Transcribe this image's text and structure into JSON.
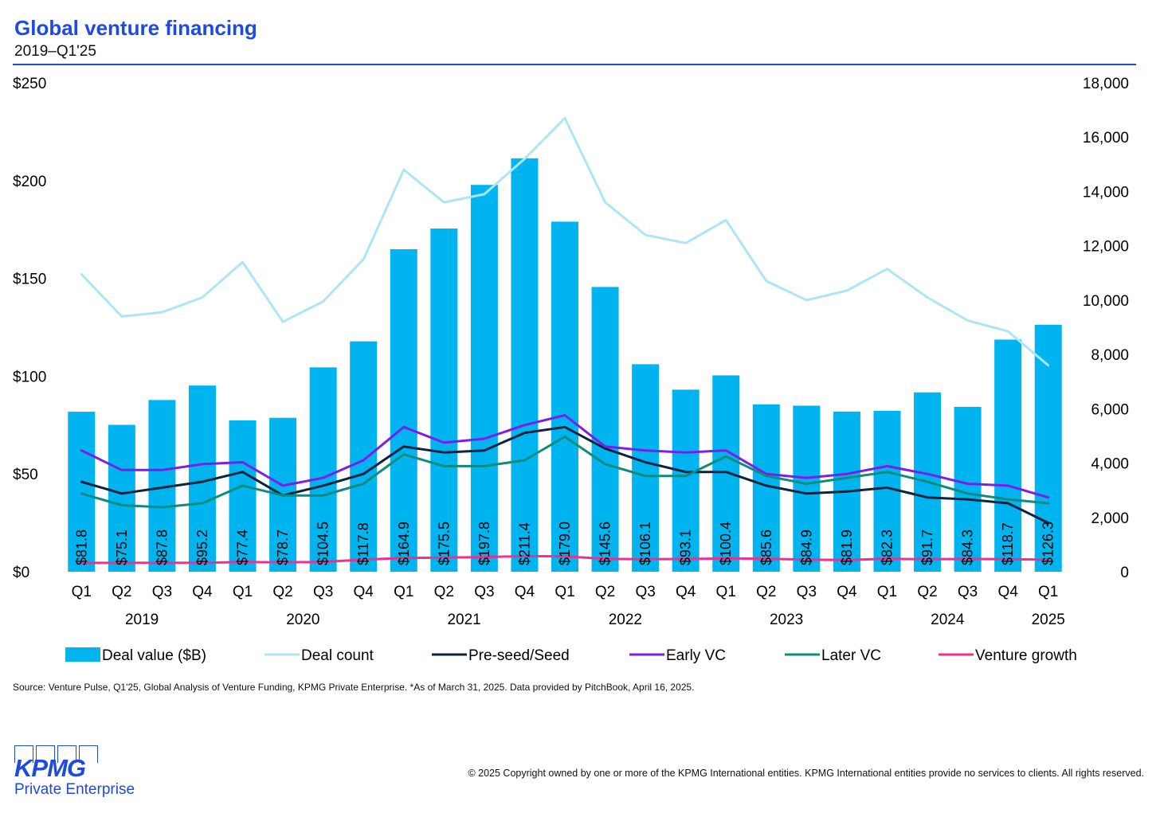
{
  "header": {
    "title": "Global venture financing",
    "subtitle": "2019–Q1'25"
  },
  "chart_data": {
    "type": "bar",
    "title": "Global venture financing",
    "subtitle": "2019–Q1'25",
    "quarters": [
      "Q1",
      "Q2",
      "Q3",
      "Q4",
      "Q1",
      "Q2",
      "Q3",
      "Q4",
      "Q1",
      "Q2",
      "Q3",
      "Q4",
      "Q1",
      "Q2",
      "Q3",
      "Q4",
      "Q1",
      "Q2",
      "Q3",
      "Q4",
      "Q1",
      "Q2",
      "Q3",
      "Q4",
      "Q1"
    ],
    "years": [
      {
        "label": "2019",
        "span": [
          0,
          3
        ]
      },
      {
        "label": "2020",
        "span": [
          4,
          7
        ]
      },
      {
        "label": "2021",
        "span": [
          8,
          11
        ]
      },
      {
        "label": "2022",
        "span": [
          12,
          15
        ]
      },
      {
        "label": "2023",
        "span": [
          16,
          19
        ]
      },
      {
        "label": "2024",
        "span": [
          20,
          23
        ]
      },
      {
        "label": "2025",
        "span": [
          24,
          24
        ]
      }
    ],
    "y_left": {
      "ylim": [
        0,
        250
      ],
      "ticks": [
        0,
        50,
        100,
        150,
        200,
        250
      ],
      "tick_labels": [
        "$0",
        "$50",
        "$100",
        "$150",
        "$200",
        "$250"
      ]
    },
    "y_right": {
      "ylim": [
        0,
        18000
      ],
      "ticks": [
        0,
        2000,
        4000,
        6000,
        8000,
        10000,
        12000,
        14000,
        16000,
        18000
      ],
      "tick_labels": [
        "0",
        "2,000",
        "4,000",
        "6,000",
        "8,000",
        "10,000",
        "12,000",
        "14,000",
        "16,000",
        "18,000"
      ]
    },
    "bar_series": {
      "name": "Deal value ($B)",
      "color": "#00b4f0",
      "values": [
        81.8,
        75.1,
        87.8,
        95.2,
        77.4,
        78.7,
        104.5,
        117.8,
        164.9,
        175.5,
        197.8,
        211.4,
        179.0,
        145.6,
        106.1,
        93.1,
        100.4,
        85.6,
        84.9,
        81.9,
        82.3,
        91.7,
        84.3,
        118.7,
        126.3
      ],
      "labels": [
        "$81.8",
        "$75.1",
        "$87.8",
        "$95.2",
        "$77.4",
        "$78.7",
        "$104.5",
        "$117.8",
        "$164.9",
        "$175.5",
        "$197.8",
        "$211.4",
        "$179.0",
        "$145.6",
        "$106.1",
        "$93.1",
        "$100.4",
        "$85.6",
        "$84.9",
        "$81.9",
        "$82.3",
        "$91.7",
        "$84.3",
        "$118.7",
        "$126.3"
      ]
    },
    "line_series": [
      {
        "name": "Deal count",
        "axis": "right",
        "color": "#aee4f7",
        "width": 3,
        "values": [
          10950,
          9400,
          9550,
          10100,
          11400,
          9200,
          9950,
          11500,
          14800,
          13600,
          13900,
          15200,
          16700,
          13600,
          12400,
          12100,
          12950,
          10700,
          10000,
          10350,
          11150,
          10100,
          9250,
          8850,
          7600
        ]
      },
      {
        "name": "Pre-seed/Seed",
        "axis": "left",
        "color": "#0c2340",
        "width": 3,
        "values": [
          46,
          40,
          43,
          46,
          51,
          39,
          44,
          50,
          64,
          61,
          62,
          71,
          74,
          63,
          56,
          51,
          51,
          44,
          40,
          41,
          43,
          38,
          37,
          35,
          25
        ]
      },
      {
        "name": "Early VC",
        "axis": "left",
        "color": "#7b1fe8",
        "width": 3,
        "values": [
          62,
          52,
          52,
          55,
          56,
          44,
          48,
          57,
          74,
          66,
          68,
          75,
          80,
          64,
          62,
          61,
          62,
          50,
          48,
          50,
          54,
          50,
          45,
          44,
          38
        ]
      },
      {
        "name": "Later VC",
        "axis": "left",
        "color": "#0d8c7e",
        "width": 3,
        "values": [
          40,
          34,
          33,
          35,
          44,
          39,
          39,
          45,
          60,
          54,
          54,
          57,
          69,
          55,
          49,
          49,
          59,
          49,
          45,
          48,
          51,
          46,
          40,
          37,
          35
        ]
      },
      {
        "name": "Venture growth",
        "axis": "left",
        "color": "#f0308e",
        "width": 3,
        "values": [
          4.5,
          4.5,
          4.6,
          4.5,
          5.0,
          4.8,
          5.0,
          6.2,
          7.0,
          7.2,
          7.5,
          8.0,
          7.8,
          6.6,
          6.4,
          6.5,
          6.8,
          6.6,
          6.2,
          6.0,
          6.6,
          6.4,
          6.5,
          6.4,
          6.2
        ]
      }
    ],
    "legend": {
      "position": "bottom",
      "items": [
        "Deal value ($B)",
        "Deal count",
        "Pre-seed/Seed",
        "Early VC",
        "Later VC",
        "Venture growth"
      ]
    }
  },
  "footer": {
    "source": "Source: Venture Pulse, Q1'25, Global Analysis of Venture Funding, KPMG Private Enterprise. *As of March 31, 2025. Data provided by PitchBook, April 16, 2025.",
    "logo_text": "KPMG",
    "logo_subtext": "Private Enterprise",
    "copyright": "© 2025 Copyright owned by one or more of the KPMG International entities. KPMG International entities provide no services to clients. All rights reserved."
  }
}
